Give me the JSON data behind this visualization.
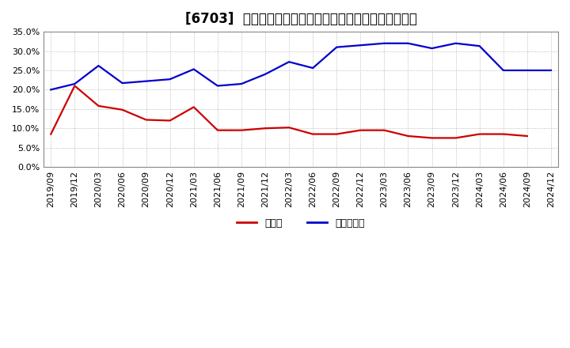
{
  "title": "[6703]  現預金、有利子負債の総資産に対する比率の推移",
  "x_labels": [
    "2019/09",
    "2019/12",
    "2020/03",
    "2020/06",
    "2020/09",
    "2020/12",
    "2021/03",
    "2021/06",
    "2021/09",
    "2021/12",
    "2022/03",
    "2022/06",
    "2022/09",
    "2022/12",
    "2023/03",
    "2023/06",
    "2023/09",
    "2023/12",
    "2024/03",
    "2024/06",
    "2024/09",
    "2024/12"
  ],
  "cash": [
    0.085,
    0.21,
    0.158,
    0.148,
    0.122,
    0.12,
    0.155,
    0.095,
    0.095,
    0.1,
    0.102,
    0.085,
    0.085,
    0.095,
    0.095,
    0.08,
    0.075,
    0.075,
    0.085,
    0.085,
    0.08,
    null
  ],
  "debt": [
    0.2,
    0.215,
    0.262,
    0.217,
    0.222,
    0.227,
    0.253,
    0.21,
    0.215,
    0.24,
    0.272,
    0.256,
    0.31,
    0.315,
    0.32,
    0.32,
    0.307,
    0.32,
    0.313,
    0.25,
    0.25,
    0.25
  ],
  "cash_color": "#cc0000",
  "debt_color": "#0000cc",
  "background_color": "#ffffff",
  "plot_bg_color": "#ffffff",
  "grid_color": "#aaaaaa",
  "ylim": [
    0.0,
    0.35
  ],
  "yticks": [
    0.0,
    0.05,
    0.1,
    0.15,
    0.2,
    0.25,
    0.3,
    0.35
  ],
  "legend_cash": "現預金",
  "legend_debt": "有利子負債",
  "title_fontsize": 12,
  "axis_fontsize": 8,
  "legend_fontsize": 9
}
